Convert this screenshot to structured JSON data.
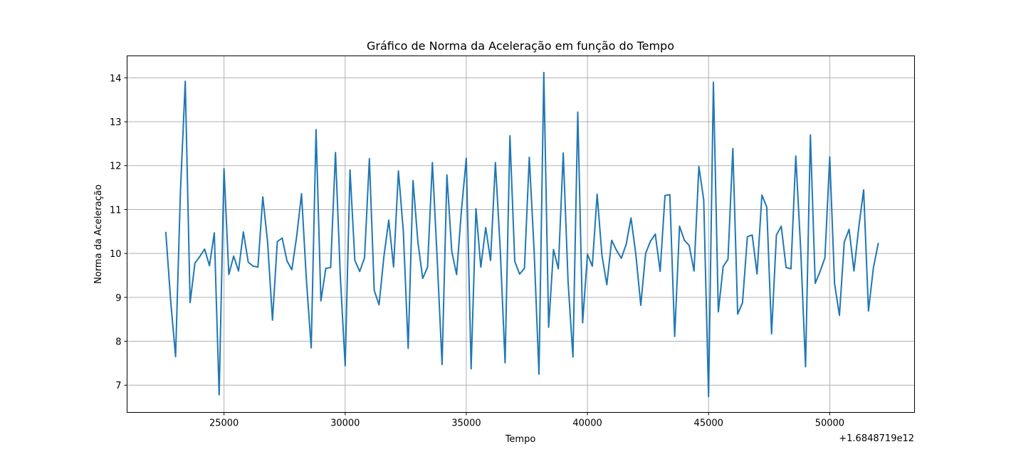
{
  "chart_data": {
    "type": "line",
    "title": "Gráfico de Norma da Aceleração em função do Tempo",
    "xlabel": "Tempo",
    "ylabel": "Norma da Aceleração",
    "x_offset_label": "+1.6848719e12",
    "xlim": [
      21000,
      53500
    ],
    "ylim": [
      6.38,
      14.5
    ],
    "x_ticks": [
      25000,
      30000,
      35000,
      40000,
      45000,
      50000
    ],
    "x_tick_labels": [
      "25000",
      "30000",
      "35000",
      "40000",
      "45000",
      "50000"
    ],
    "y_ticks": [
      7,
      8,
      9,
      10,
      11,
      12,
      13,
      14
    ],
    "y_tick_labels": [
      "7",
      "8",
      "9",
      "10",
      "11",
      "12",
      "13",
      "14"
    ],
    "grid": true,
    "series": [
      {
        "color": "#1f77b4",
        "x": [
          22600,
          22800,
          23000,
          23200,
          23400,
          23600,
          23800,
          24000,
          24200,
          24400,
          24600,
          24800,
          25000,
          25200,
          25400,
          25600,
          25800,
          26000,
          26200,
          26400,
          26600,
          26800,
          27000,
          27200,
          27400,
          27600,
          27800,
          28000,
          28200,
          28400,
          28600,
          28800,
          29000,
          29200,
          29400,
          29600,
          29800,
          30000,
          30200,
          30400,
          30600,
          30800,
          31000,
          31200,
          31400,
          31600,
          31800,
          32000,
          32200,
          32400,
          32600,
          32800,
          33000,
          33200,
          33400,
          33600,
          33800,
          34000,
          34200,
          34400,
          34600,
          34800,
          35000,
          35200,
          35400,
          35600,
          35800,
          36000,
          36200,
          36400,
          36600,
          36800,
          37000,
          37200,
          37400,
          37600,
          37800,
          38000,
          38200,
          38400,
          38600,
          38800,
          39000,
          39200,
          39400,
          39600,
          39800,
          40000,
          40200,
          40400,
          40600,
          40800,
          41000,
          41200,
          41400,
          41600,
          41800,
          42000,
          42200,
          42400,
          42600,
          42800,
          43000,
          43200,
          43400,
          43600,
          43800,
          44000,
          44200,
          44400,
          44600,
          44800,
          45000,
          45200,
          45400,
          45600,
          45800,
          46000,
          46200,
          46400,
          46600,
          46800,
          47000,
          47200,
          47400,
          47600,
          47800,
          48000,
          48200,
          48400,
          48600,
          48800,
          49000,
          49200,
          49400,
          49600,
          49800,
          50000,
          50200,
          50400,
          50600,
          50800,
          51000,
          51200,
          51400,
          51600,
          51800,
          52000
        ],
        "y": [
          10.48,
          8.9,
          7.65,
          11.4,
          13.92,
          8.88,
          9.78,
          9.93,
          10.1,
          9.72,
          10.47,
          6.78,
          11.93,
          9.52,
          9.94,
          9.6,
          10.49,
          9.8,
          9.71,
          9.69,
          11.29,
          10.25,
          8.48,
          10.27,
          10.35,
          9.83,
          9.63,
          10.39,
          11.36,
          9.41,
          7.85,
          12.82,
          8.92,
          9.66,
          9.68,
          12.3,
          9.47,
          7.44,
          11.9,
          9.84,
          9.59,
          9.9,
          12.16,
          9.16,
          8.83,
          9.93,
          10.76,
          9.69,
          11.88,
          10.5,
          7.84,
          11.66,
          10.27,
          9.43,
          9.69,
          12.07,
          9.86,
          7.47,
          11.79,
          10.05,
          9.52,
          10.98,
          12.17,
          7.37,
          11.02,
          9.69,
          10.59,
          9.84,
          12.07,
          10.09,
          7.51,
          12.68,
          9.82,
          9.53,
          9.66,
          12.19,
          10.06,
          7.25,
          14.12,
          8.32,
          10.09,
          9.65,
          12.29,
          9.35,
          7.64,
          13.22,
          8.42,
          9.98,
          9.71,
          11.35,
          9.95,
          9.29,
          10.3,
          10.07,
          9.89,
          10.21,
          10.81,
          9.97,
          8.82,
          10,
          10.28,
          10.44,
          9.59,
          11.32,
          11.34,
          8.11,
          10.62,
          10.3,
          10.18,
          9.6,
          11.98,
          11.22,
          6.74,
          13.9,
          8.67,
          9.7,
          9.87,
          12.39,
          8.62,
          8.88,
          10.38,
          10.42,
          9.53,
          11.33,
          11.06,
          8.17,
          10.42,
          10.62,
          9.68,
          9.65,
          12.22,
          10.09,
          7.42,
          12.7,
          9.32,
          9.59,
          9.9,
          12.2,
          9.31,
          8.59,
          10.26,
          10.55,
          9.6,
          10.6,
          11.45,
          8.69,
          9.66,
          10.23
        ]
      }
    ]
  }
}
